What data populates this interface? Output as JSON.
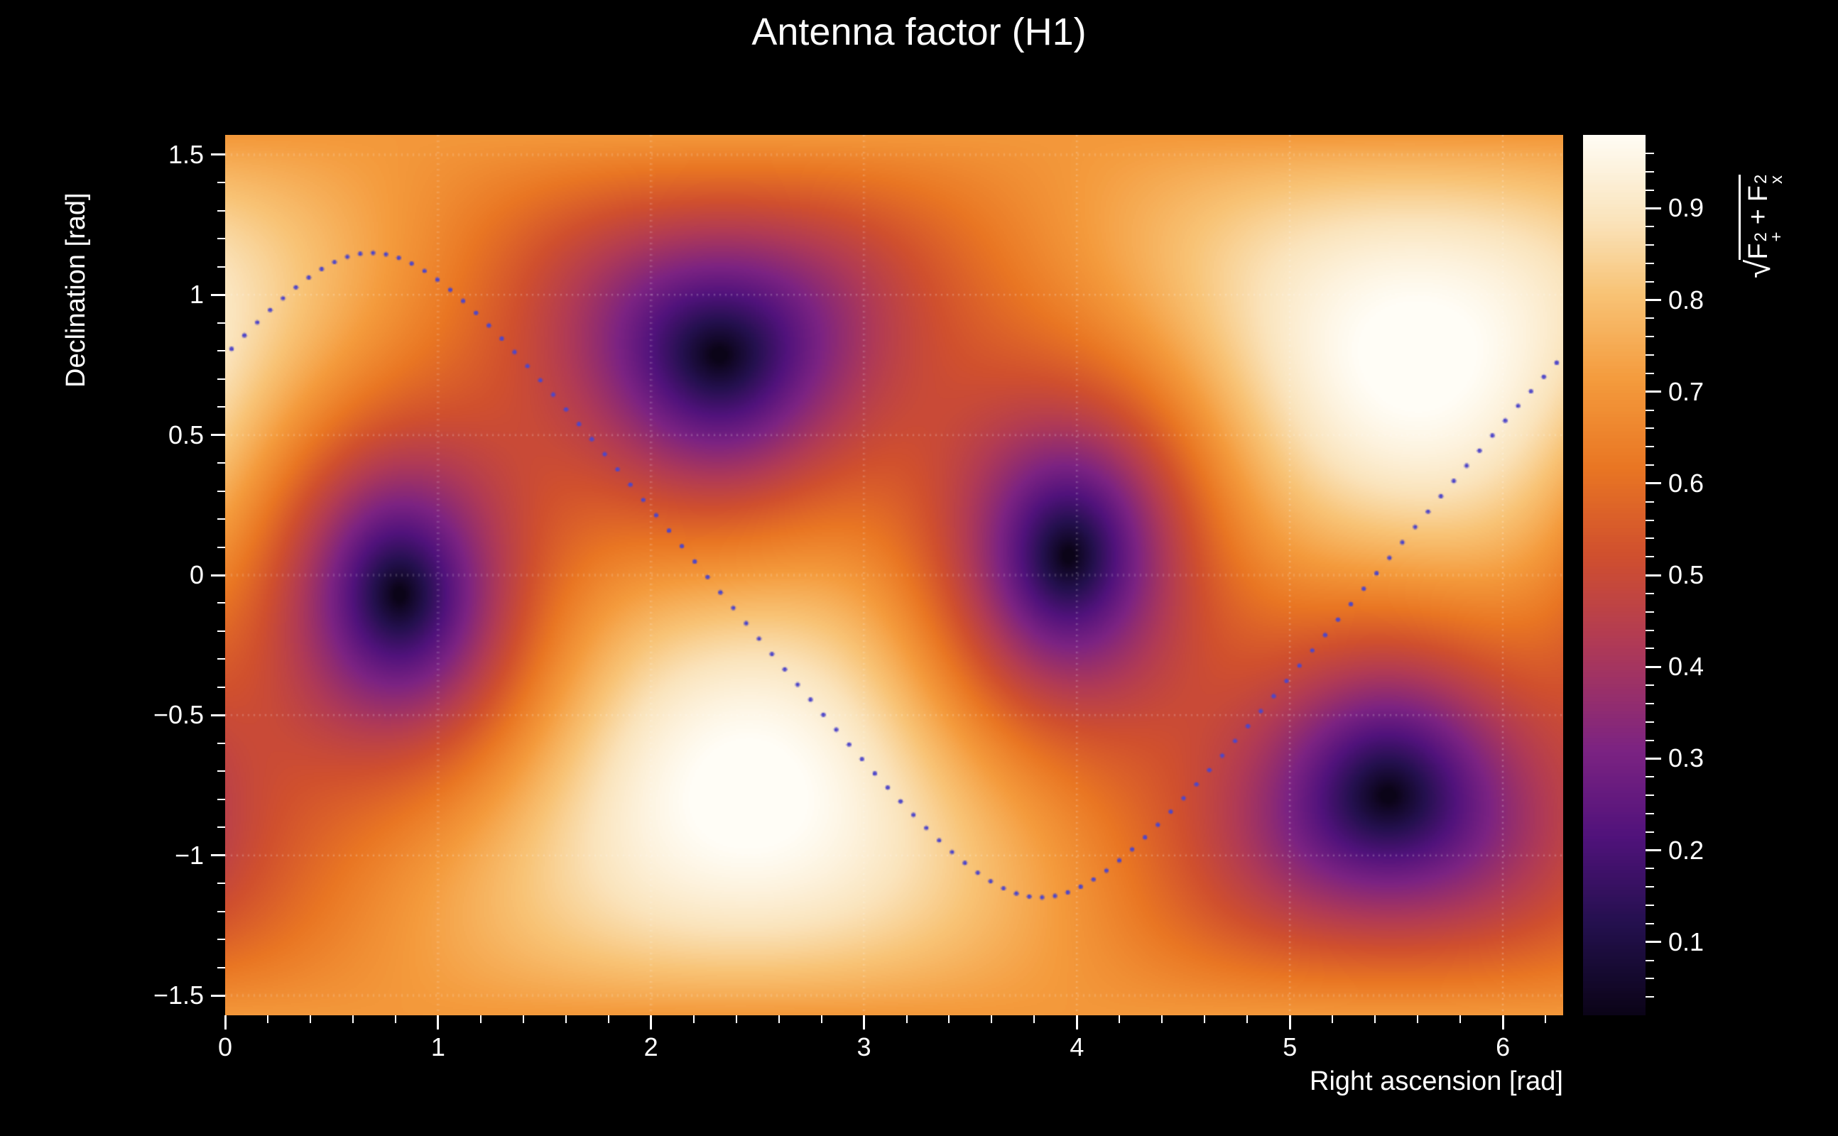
{
  "chart_data": {
    "type": "heatmap",
    "title": "Antenna factor (H1)",
    "xlabel": "Right ascension [rad]",
    "ylabel": "Declination [rad]",
    "zlabel_radical": "√",
    "zlabel_parts": {
      "f": "F",
      "plus": "+",
      "x": "x",
      "two": "2",
      "op": "+"
    },
    "xlim": [
      0,
      6.28319
    ],
    "ylim": [
      -1.5708,
      1.5708
    ],
    "zlim": [
      0.02,
      0.98
    ],
    "grid": true,
    "legend": "none",
    "x_ticks": {
      "values": [
        0,
        1,
        2,
        3,
        4,
        5,
        6
      ],
      "labels": [
        "0",
        "1",
        "2",
        "3",
        "4",
        "5",
        "6"
      ],
      "minor_step": 0.2
    },
    "y_ticks": {
      "values": [
        1.5,
        1,
        0.5,
        0,
        -0.5,
        -1,
        -1.5
      ],
      "labels": [
        "1.5",
        "1",
        "0.5",
        "0",
        "−0.5",
        "−1",
        "−1.5"
      ],
      "minor_step": 0.1
    },
    "z_ticks": {
      "values": [
        0.1,
        0.2,
        0.3,
        0.4,
        0.5,
        0.6,
        0.7,
        0.8,
        0.9
      ],
      "labels": [
        "0.1",
        "0.2",
        "0.3",
        "0.4",
        "0.5",
        "0.6",
        "0.7",
        "0.8",
        "0.9"
      ],
      "minor_step": 0.02
    },
    "field": {
      "model": "interferometer antenna pattern sqrt(F+^2 + Fx^2)",
      "zenith": {
        "ra": 5.6,
        "dec": 0.78
      },
      "maxima": [
        {
          "ra": 5.6,
          "dec": 0.78,
          "value": 1.0
        },
        {
          "ra": 2.46,
          "dec": -0.78,
          "value": 1.0
        }
      ],
      "nulls": [
        {
          "ra": 0.85,
          "dec": -0.1
        },
        {
          "ra": 2.33,
          "dec": 0.78
        },
        {
          "ra": 3.99,
          "dec": 0.1
        },
        {
          "ra": 5.47,
          "dec": -0.78
        }
      ]
    },
    "track": {
      "shape": "great-circle",
      "inclination_rad": 1.15,
      "ascending_node_ra": 5.4,
      "n_dots": 104,
      "color": "#4e46c8"
    },
    "colormap": [
      [
        0.0,
        "#0b0418"
      ],
      [
        0.1,
        "#23104d"
      ],
      [
        0.2,
        "#50127b"
      ],
      [
        0.3,
        "#7c2382"
      ],
      [
        0.42,
        "#b03a56"
      ],
      [
        0.52,
        "#d04f2e"
      ],
      [
        0.62,
        "#e97623"
      ],
      [
        0.72,
        "#f49b3d"
      ],
      [
        0.82,
        "#f8c477"
      ],
      [
        0.9,
        "#fae3bb"
      ],
      [
        1.0,
        "#fffdf6"
      ]
    ]
  }
}
